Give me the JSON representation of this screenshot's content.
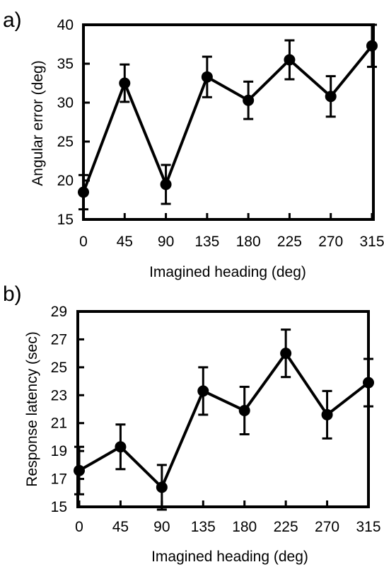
{
  "chart_data": [
    {
      "panel_label": "a)",
      "type": "line",
      "title": "",
      "xlabel": "Imagined heading (deg)",
      "ylabel": "Angular error (deg)",
      "x": [
        0,
        45,
        90,
        135,
        180,
        225,
        270,
        315
      ],
      "x_tick_labels": [
        "0",
        "45",
        "90",
        "135",
        "180",
        "225",
        "270",
        "315"
      ],
      "ylim": [
        15,
        40
      ],
      "y_ticks": [
        15,
        20,
        25,
        30,
        35,
        40
      ],
      "y_tick_labels": [
        "15",
        "20",
        "25",
        "30",
        "35",
        "40"
      ],
      "series": [
        {
          "values": [
            18.5,
            32.5,
            19.5,
            33.3,
            30.3,
            35.5,
            30.8,
            37.3
          ],
          "error": [
            2.2,
            2.4,
            2.5,
            2.6,
            2.4,
            2.5,
            2.6,
            2.7
          ]
        }
      ],
      "grid": false,
      "legend": "none"
    },
    {
      "panel_label": "b)",
      "type": "line",
      "title": "",
      "xlabel": "Imagined heading (deg)",
      "ylabel": "Response latency (sec)",
      "x": [
        0,
        45,
        90,
        135,
        180,
        225,
        270,
        315
      ],
      "x_tick_labels": [
        "0",
        "45",
        "90",
        "135",
        "180",
        "225",
        "270",
        "315"
      ],
      "ylim": [
        15,
        29
      ],
      "y_ticks": [
        15,
        17,
        19,
        21,
        23,
        25,
        27,
        29
      ],
      "y_tick_labels": [
        "15",
        "17",
        "19",
        "21",
        "23",
        "25",
        "27",
        "29"
      ],
      "series": [
        {
          "values": [
            17.6,
            19.3,
            16.4,
            23.3,
            21.9,
            26.0,
            21.6,
            23.9
          ],
          "error": [
            1.7,
            1.6,
            1.6,
            1.7,
            1.7,
            1.7,
            1.7,
            1.7
          ]
        }
      ],
      "grid": false,
      "legend": "none"
    }
  ],
  "style": {
    "ink": "#000000",
    "background": "#ffffff"
  }
}
